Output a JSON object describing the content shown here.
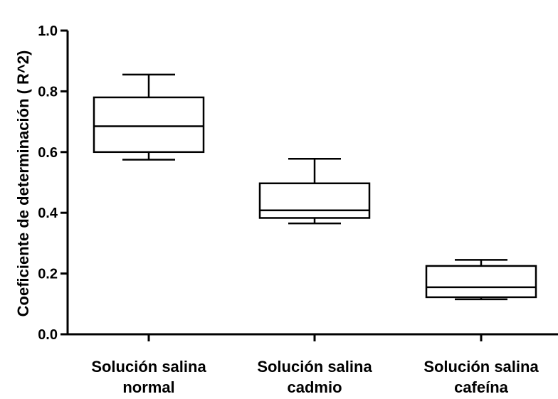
{
  "chart_data": {
    "type": "box",
    "title": "",
    "xlabel": "",
    "ylabel": "Coeficiente de determinación ( R^2)",
    "ylim": [
      0,
      1.0
    ],
    "yticks": [
      "0.0",
      "0.2",
      "0.4",
      "0.6",
      "0.8",
      "1.0"
    ],
    "categories": [
      [
        "Solución salina",
        "normal"
      ],
      [
        "Solución salina",
        "cadmio"
      ],
      [
        "Solución salina",
        "cafeína"
      ]
    ],
    "boxes": [
      {
        "min": 0.575,
        "q1": 0.6,
        "median": 0.685,
        "q3": 0.78,
        "max": 0.855
      },
      {
        "min": 0.365,
        "q1": 0.383,
        "median": 0.408,
        "q3": 0.497,
        "max": 0.578
      },
      {
        "min": 0.115,
        "q1": 0.122,
        "median": 0.155,
        "q3": 0.225,
        "max": 0.245
      }
    ],
    "colors": {
      "stroke": "#000000",
      "fill": "#ffffff"
    }
  }
}
